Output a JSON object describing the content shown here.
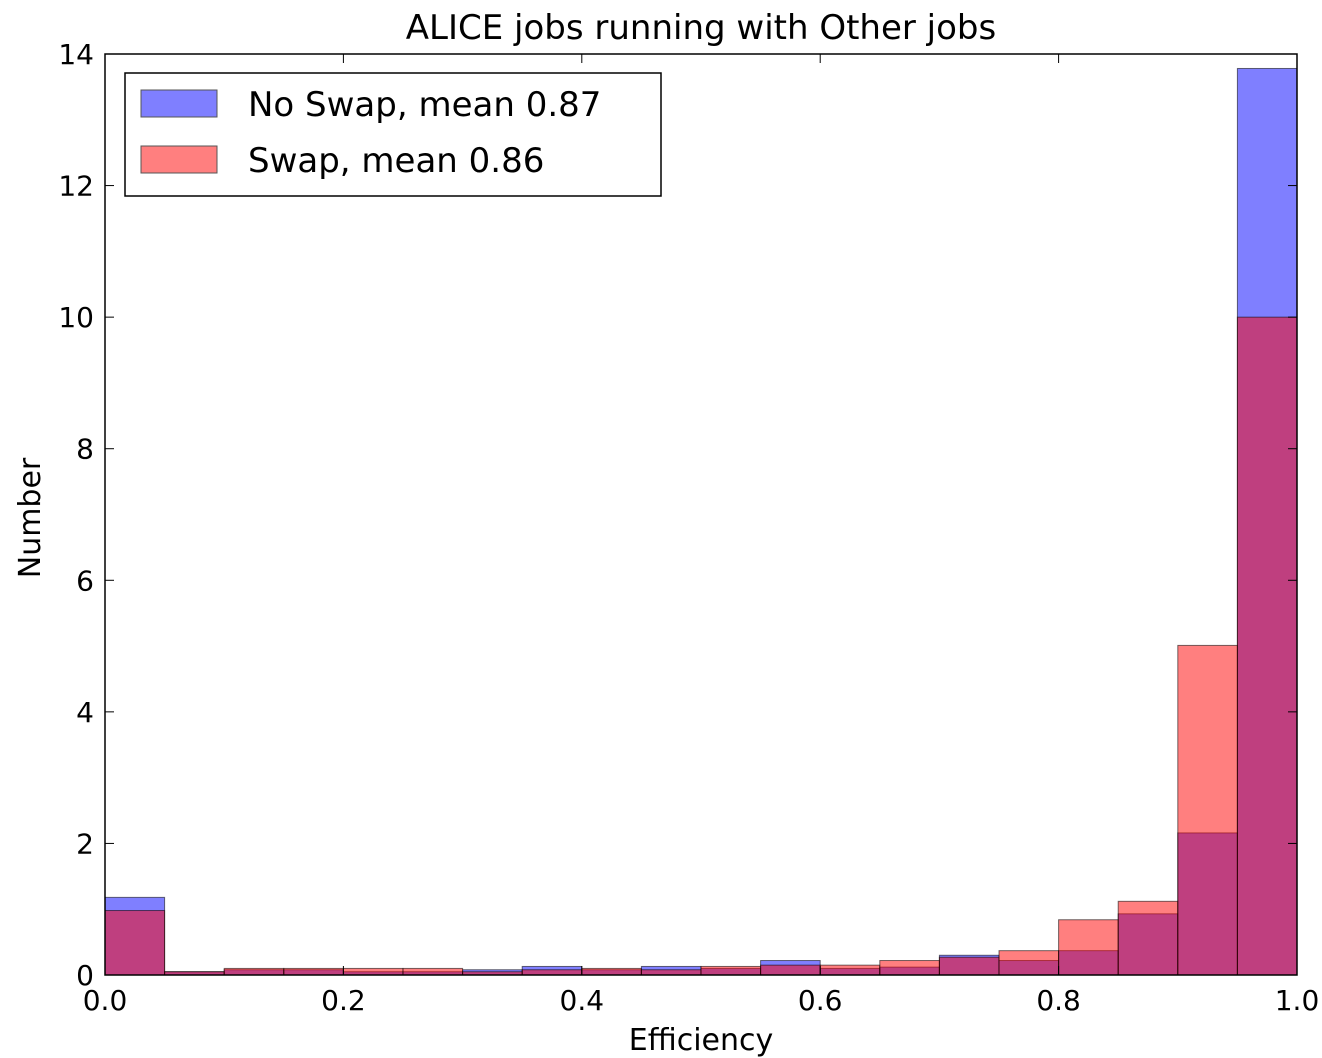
{
  "chart_data": {
    "type": "bar",
    "title": "ALICE jobs running with Other jobs",
    "xlabel": "Efficiency",
    "ylabel": "Number",
    "xlim": [
      0.0,
      1.0
    ],
    "ylim": [
      0,
      14
    ],
    "x_ticks": [
      "0.0",
      "0.2",
      "0.4",
      "0.6",
      "0.8",
      "1.0"
    ],
    "y_ticks": [
      "0",
      "2",
      "4",
      "6",
      "8",
      "10",
      "12",
      "14"
    ],
    "bin_edges": [
      0.0,
      0.05,
      0.1,
      0.15,
      0.2,
      0.25,
      0.3,
      0.35,
      0.4,
      0.45,
      0.5,
      0.55,
      0.6,
      0.65,
      0.7,
      0.75,
      0.8,
      0.85,
      0.9,
      0.95,
      1.0
    ],
    "legend_position": "top-left",
    "grid": false,
    "series": [
      {
        "name": "No Swap, mean 0.87",
        "color": "#0000ff",
        "values": [
          1.18,
          0.05,
          0.08,
          0.08,
          0.05,
          0.05,
          0.08,
          0.13,
          0.08,
          0.13,
          0.1,
          0.22,
          0.1,
          0.12,
          0.3,
          0.22,
          0.37,
          0.93,
          2.16,
          13.78
        ]
      },
      {
        "name": "Swap, mean 0.86",
        "color": "#ff0000",
        "values": [
          0.98,
          0.05,
          0.1,
          0.1,
          0.1,
          0.1,
          0.05,
          0.08,
          0.1,
          0.08,
          0.13,
          0.15,
          0.15,
          0.22,
          0.27,
          0.37,
          0.84,
          1.12,
          5.01,
          10.0
        ]
      }
    ]
  }
}
